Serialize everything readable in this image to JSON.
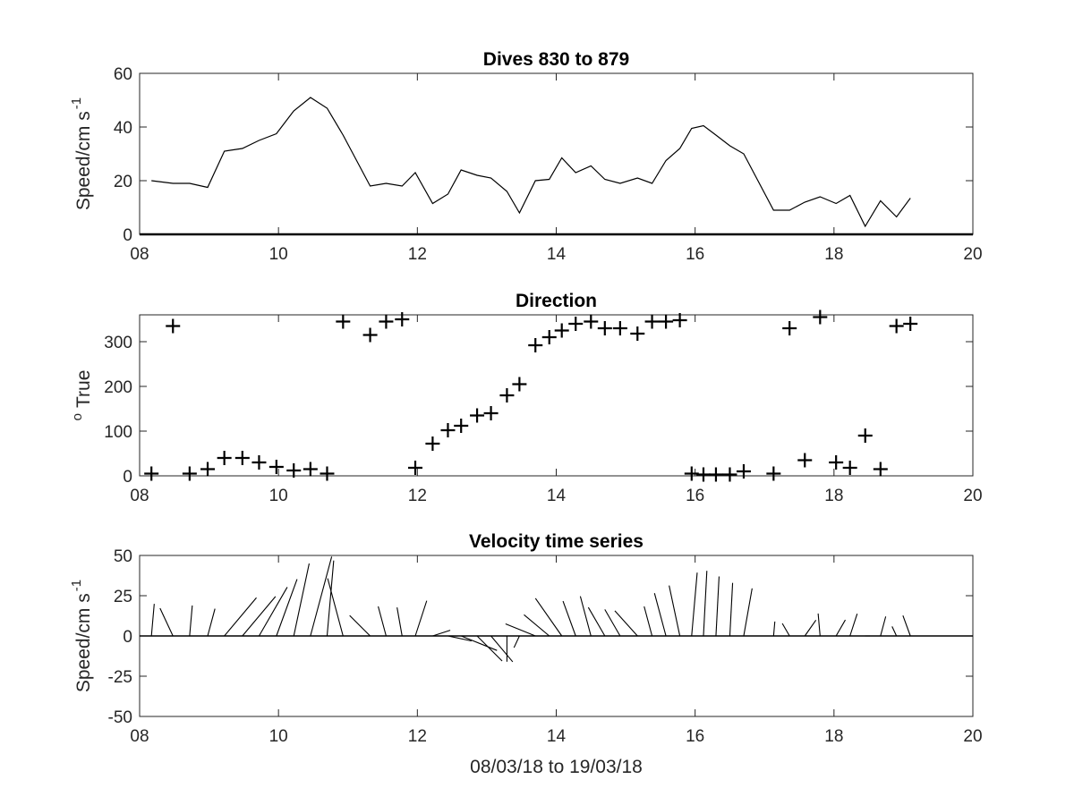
{
  "chart_data": [
    {
      "type": "line",
      "title": "Dives 830 to 879",
      "ylabel": "Speed/cm s",
      "ylabel_superscript": "-1",
      "xlabel": "",
      "xlim": [
        8,
        20
      ],
      "ylim": [
        0,
        60
      ],
      "xticks": [
        8,
        10,
        12,
        14,
        16,
        18,
        20
      ],
      "xtick_labels": [
        "08",
        "10",
        "12",
        "14",
        "16",
        "18",
        "20"
      ],
      "yticks": [
        0,
        20,
        40,
        60
      ],
      "ytick_labels": [
        "0",
        "20",
        "40",
        "60"
      ],
      "x": [
        8.17,
        8.48,
        8.72,
        8.98,
        9.22,
        9.48,
        9.72,
        9.97,
        10.22,
        10.46,
        10.7,
        10.93,
        11.32,
        11.55,
        11.78,
        11.97,
        12.22,
        12.44,
        12.63,
        12.86,
        13.06,
        13.29,
        13.47,
        13.7,
        13.9,
        14.08,
        14.28,
        14.5,
        14.7,
        14.92,
        15.17,
        15.38,
        15.58,
        15.78,
        15.95,
        16.12,
        16.3,
        16.5,
        16.7,
        17.13,
        17.36,
        17.58,
        17.8,
        18.03,
        18.23,
        18.45,
        18.67,
        18.9,
        19.1
      ],
      "y": [
        20,
        19,
        19,
        17.5,
        31,
        32,
        35,
        37.5,
        46,
        51,
        47,
        37,
        18,
        19,
        18,
        23,
        11.5,
        15,
        24,
        22,
        21,
        16,
        8,
        20,
        20.5,
        28.5,
        23,
        25.5,
        20.5,
        19,
        21,
        19,
        27.5,
        32,
        39.5,
        40.5,
        37,
        33,
        30,
        9,
        9,
        12,
        14,
        11.5,
        14.5,
        3,
        12.5,
        6.5,
        13.5
      ]
    },
    {
      "type": "scatter",
      "title": "Direction",
      "ylabel": "True",
      "ylabel_superscript": "o",
      "xlabel": "",
      "xlim": [
        8,
        20
      ],
      "ylim": [
        0,
        360
      ],
      "xticks": [
        8,
        10,
        12,
        14,
        16,
        18,
        20
      ],
      "xtick_labels": [
        "08",
        "10",
        "12",
        "14",
        "16",
        "18",
        "20"
      ],
      "yticks": [
        0,
        100,
        200,
        300
      ],
      "ytick_labels": [
        "0",
        "100",
        "200",
        "300"
      ],
      "marker": "+",
      "x": [
        8.17,
        8.48,
        8.72,
        8.98,
        9.22,
        9.48,
        9.72,
        9.97,
        10.22,
        10.46,
        10.7,
        10.93,
        11.32,
        11.55,
        11.78,
        11.97,
        12.22,
        12.44,
        12.63,
        12.86,
        13.06,
        13.29,
        13.47,
        13.7,
        13.9,
        14.08,
        14.28,
        14.5,
        14.7,
        14.92,
        15.17,
        15.38,
        15.58,
        15.78,
        15.95,
        16.12,
        16.3,
        16.5,
        16.7,
        17.13,
        17.36,
        17.58,
        17.8,
        18.03,
        18.23,
        18.45,
        18.67,
        18.9,
        19.1
      ],
      "y": [
        5,
        335,
        5,
        15,
        40,
        40,
        30,
        20,
        12,
        15,
        5,
        345,
        315,
        345,
        350,
        18,
        72,
        102,
        112,
        135,
        140,
        180,
        205,
        292,
        310,
        325,
        340,
        345,
        330,
        330,
        318,
        345,
        345,
        348,
        5,
        3,
        3,
        3,
        10,
        5,
        330,
        35,
        355,
        30,
        18,
        90,
        15,
        335,
        340
      ]
    },
    {
      "type": "quiver",
      "title": "Velocity time series",
      "ylabel": "Speed/cm s",
      "ylabel_superscript": "-1",
      "xlabel": "08/03/18 to 19/03/18",
      "xlim": [
        8,
        20
      ],
      "ylim": [
        -50,
        50
      ],
      "xticks": [
        8,
        10,
        12,
        14,
        16,
        18,
        20
      ],
      "xtick_labels": [
        "08",
        "10",
        "12",
        "14",
        "16",
        "18",
        "20"
      ],
      "yticks": [
        50,
        25,
        0,
        -25,
        -50
      ],
      "ytick_labels": [
        "50",
        "25",
        "0",
        "-25",
        "-50"
      ],
      "vectors_note": "one stick per dive, length = speed, angle = direction (degrees True)"
    }
  ]
}
